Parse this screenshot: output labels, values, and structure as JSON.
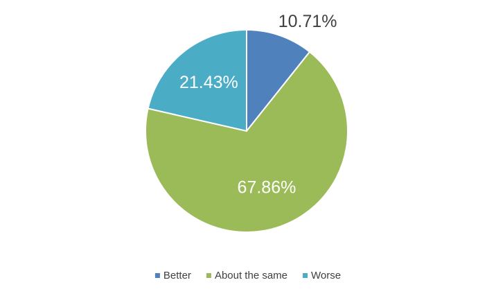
{
  "chart_data": {
    "type": "pie",
    "categories": [
      "Better",
      "About the same",
      "Worse"
    ],
    "values": [
      10.71,
      67.86,
      21.43
    ],
    "value_labels": [
      "10.71%",
      "67.86%",
      "21.43%"
    ],
    "colors": [
      "#4f81bd",
      "#9bbb59",
      "#4bacc6"
    ],
    "legend": "bottom"
  }
}
